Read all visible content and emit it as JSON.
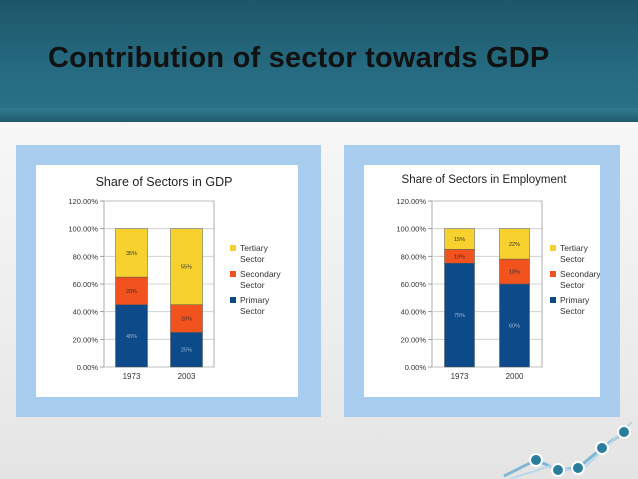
{
  "slide": {
    "title": "Contribution of sector towards GDP"
  },
  "colors": {
    "tertiary": "#f7d12d",
    "secondary": "#f2521e",
    "primary": "#0d4a8a"
  },
  "chart_data": [
    {
      "type": "bar",
      "stacked": true,
      "title": "Share of Sectors in GDP",
      "categories": [
        "1973",
        "2003"
      ],
      "yticks": [
        "0.00%",
        "20.00%",
        "40.00%",
        "60.00%",
        "80.00%",
        "100.00%",
        "120.00%"
      ],
      "ylim": [
        0,
        120
      ],
      "grid": true,
      "legend_position": "right",
      "series": [
        {
          "name": "Primary Sector",
          "legend": [
            "Primary",
            "Sector"
          ],
          "values": [
            45,
            25
          ],
          "labels": [
            "45%",
            "25%"
          ],
          "color": "#0d4a8a"
        },
        {
          "name": "Secondary Sector",
          "legend": [
            "Secondary",
            "Sector"
          ],
          "values": [
            20,
            20
          ],
          "labels": [
            "20%",
            "20%"
          ],
          "color": "#f2521e"
        },
        {
          "name": "Tertiary Sector",
          "legend": [
            "Tertiary",
            "Sector"
          ],
          "values": [
            35,
            55
          ],
          "labels": [
            "35%",
            "55%"
          ],
          "color": "#f7d12d"
        }
      ]
    },
    {
      "type": "bar",
      "stacked": true,
      "title": "Share of Sectors in Employment",
      "categories": [
        "1973",
        "2000"
      ],
      "yticks": [
        "0.00%",
        "20.00%",
        "40.00%",
        "60.00%",
        "80.00%",
        "100.00%",
        "120.00%"
      ],
      "ylim": [
        0,
        120
      ],
      "grid": true,
      "legend_position": "right",
      "series": [
        {
          "name": "Primary Sector",
          "legend": [
            "Primary",
            "Sector"
          ],
          "values": [
            75,
            60
          ],
          "labels": [
            "75%",
            "60%"
          ],
          "color": "#0d4a8a"
        },
        {
          "name": "Secondary Sector",
          "legend": [
            "Secondary",
            "Sector"
          ],
          "values": [
            10,
            18
          ],
          "labels": [
            "10%",
            "18%"
          ],
          "color": "#f2521e"
        },
        {
          "name": "Tertiary Sector",
          "legend": [
            "Tertiary",
            "Sector"
          ],
          "values": [
            15,
            22
          ],
          "labels": [
            "15%",
            "22%"
          ],
          "color": "#f7d12d"
        }
      ]
    }
  ]
}
